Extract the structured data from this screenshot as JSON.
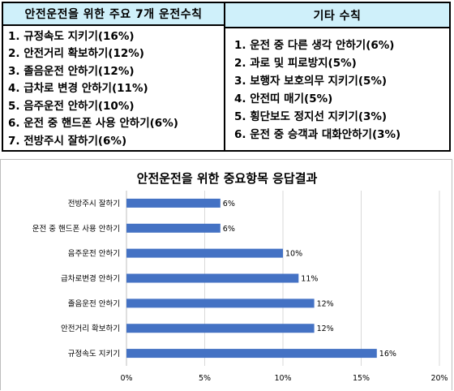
{
  "table": {
    "left_header": "안전운전을 위한 주요 7개 운전수칙",
    "right_header": "기타  수칙",
    "left_items": [
      "1. 규정속도 지키기(16%)",
      "2. 안전거리 확보하기(12%)",
      "3. 졸음운전 안하기(12%)",
      "4. 급차로 변경 안하기(11%)",
      "5. 음주운전 안하기(10%)",
      "6. 운전 중 핸드폰 사용 안하기(6%)",
      "7. 전방주시 잘하기(6%)"
    ],
    "right_items": [
      "1. 운전 중 다른 생각 안하기(6%)",
      "2. 과로 및 피로방지(5%)",
      "3. 보행자 보호의무 지키기(5%)",
      "4. 안전띠 매기(5%)",
      "5. 횡단보도 정지선 지키기(3%)",
      "6. 운전 중 승객과 대화안하기(3%)"
    ]
  },
  "colors": {
    "bar": "#4472c4",
    "header_bg": "#cff0fa",
    "grid": "#d9d9d9"
  },
  "chart_data": {
    "type": "bar",
    "orientation": "horizontal",
    "title": "안전운전을 위한 중요항목 응답결과",
    "categories": [
      "전방주시 잘하기",
      "운전 중 핸드폰 사용 안하기",
      "음주운전 안하기",
      "급차로변경 안하기",
      "졸음운전 안하기",
      "안전거리 확보하기",
      "규정속도 지키기"
    ],
    "values": [
      6,
      6,
      10,
      11,
      12,
      12,
      16
    ],
    "data_labels": [
      "6%",
      "6%",
      "10%",
      "11%",
      "12%",
      "12%",
      "16%"
    ],
    "xlim": [
      0,
      20
    ],
    "xticks": [
      "0%",
      "5%",
      "10%",
      "15%",
      "20%"
    ],
    "grid": "vertical",
    "legend": "none"
  }
}
